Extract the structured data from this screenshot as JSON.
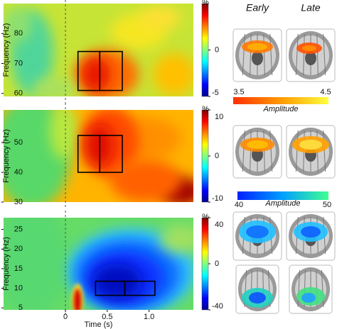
{
  "chart_data": [
    {
      "type": "heatmap",
      "ylabel": "Frequency (Hz)",
      "xlim": [
        -0.74,
        1.53
      ],
      "ylim": [
        59,
        90
      ],
      "yticks": [
        60,
        70,
        80
      ],
      "clim": [
        -5,
        5
      ],
      "cticks": [
        0,
        -5
      ],
      "clabel": "%",
      "event_x": 0,
      "boxes": [
        {
          "x0": 0.15,
          "x1": 0.41,
          "y0": 61,
          "y1": 74
        },
        {
          "x0": 0.41,
          "x1": 0.68,
          "y0": 61,
          "y1": 74
        }
      ]
    },
    {
      "type": "heatmap",
      "ylabel": "Frequency (Hz)",
      "xlim": [
        -0.74,
        1.53
      ],
      "ylim": [
        30,
        61
      ],
      "yticks": [
        30,
        40,
        50
      ],
      "clim": [
        -10,
        10
      ],
      "cticks": [
        10,
        0,
        -10
      ],
      "clabel": "%",
      "event_x": 0,
      "boxes": [
        {
          "x0": 0.15,
          "x1": 0.41,
          "y0": 40,
          "y1": 52.4
        },
        {
          "x0": 0.41,
          "x1": 0.68,
          "y0": 40,
          "y1": 52.4
        }
      ]
    },
    {
      "type": "heatmap",
      "ylabel": "Frequency (Hz)",
      "xlabel": "Time (s)",
      "xlim": [
        -0.74,
        1.53
      ],
      "ylim": [
        4.5,
        28
      ],
      "yticks": [
        5,
        10,
        15,
        20,
        25
      ],
      "xticks": [
        0,
        0.5,
        {
          "value": 1,
          "label": "1.0"
        }
      ],
      "clim": [
        -40,
        40
      ],
      "cticks": [
        40,
        0,
        -40
      ],
      "clabel": "%",
      "event_x": 0,
      "boxes": [
        {
          "x0": 0.36,
          "x1": 0.71,
          "y0": 8.2,
          "y1": 11.8
        },
        {
          "x0": 0.71,
          "x1": 1.07,
          "y0": 8.2,
          "y1": 11.8
        }
      ]
    }
  ],
  "brain_panel": {
    "columns": [
      "Early",
      "Late"
    ],
    "scales": [
      {
        "min": 3.5,
        "max": 4.5,
        "label": "Amplitude"
      },
      {
        "min": 40,
        "max": 50,
        "label": "Amplitude"
      }
    ]
  }
}
